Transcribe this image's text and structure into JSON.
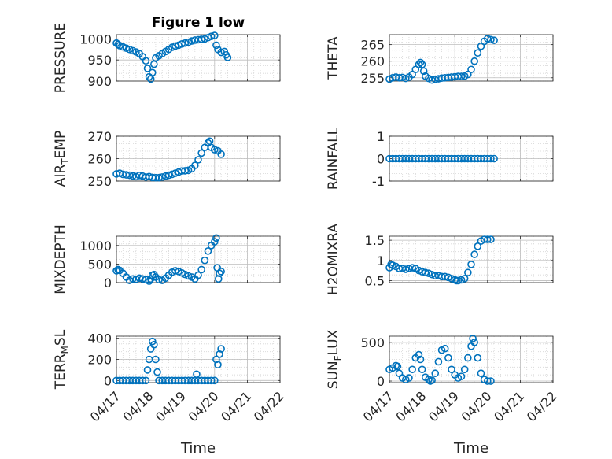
{
  "figure": {
    "title": "Figure 1 low",
    "xlabel": "Time",
    "x_tick_labels": [
      "04/17",
      "04/18",
      "04/19",
      "04/20",
      "04/21",
      "04/22"
    ]
  },
  "chart_data": [
    {
      "type": "scatter",
      "subplot": 1,
      "ylabel": "PRESSURE",
      "title": "Figure 1 low",
      "xlim": [
        0,
        5
      ],
      "ylim": [
        900,
        1010
      ],
      "yticks": [
        900,
        950,
        1000
      ],
      "x_tick_labels": [
        "04/17",
        "04/18",
        "04/19",
        "04/20",
        "04/21",
        "04/22"
      ],
      "grid": true,
      "marker": "open-circle",
      "color": "#0072BD",
      "points": [
        [
          0.0,
          990
        ],
        [
          0.05,
          987
        ],
        [
          0.1,
          984
        ],
        [
          0.2,
          981
        ],
        [
          0.3,
          978
        ],
        [
          0.4,
          975
        ],
        [
          0.5,
          972
        ],
        [
          0.6,
          969
        ],
        [
          0.7,
          965
        ],
        [
          0.8,
          958
        ],
        [
          0.9,
          948
        ],
        [
          0.95,
          930
        ],
        [
          1.0,
          910
        ],
        [
          1.05,
          905
        ],
        [
          1.1,
          920
        ],
        [
          1.15,
          940
        ],
        [
          1.2,
          955
        ],
        [
          1.3,
          960
        ],
        [
          1.4,
          965
        ],
        [
          1.5,
          970
        ],
        [
          1.6,
          975
        ],
        [
          1.7,
          980
        ],
        [
          1.8,
          983
        ],
        [
          1.9,
          985
        ],
        [
          2.0,
          988
        ],
        [
          2.1,
          990
        ],
        [
          2.2,
          992
        ],
        [
          2.3,
          995
        ],
        [
          2.4,
          997
        ],
        [
          2.5,
          998
        ],
        [
          2.6,
          999
        ],
        [
          2.7,
          1000
        ],
        [
          2.8,
          1003
        ],
        [
          2.9,
          1006
        ],
        [
          3.0,
          1008
        ],
        [
          3.05,
          985
        ],
        [
          3.1,
          975
        ],
        [
          3.2,
          968
        ],
        [
          3.3,
          970
        ],
        [
          3.35,
          962
        ],
        [
          3.4,
          956
        ]
      ]
    },
    {
      "type": "scatter",
      "subplot": 2,
      "ylabel": "THETA",
      "xlim": [
        0,
        5
      ],
      "ylim": [
        254,
        268
      ],
      "yticks": [
        255,
        260,
        265
      ],
      "x_tick_labels": [
        "04/17",
        "04/18",
        "04/19",
        "04/20",
        "04/21",
        "04/22"
      ],
      "grid": true,
      "marker": "open-circle",
      "color": "#0072BD",
      "points": [
        [
          0.0,
          254.6
        ],
        [
          0.1,
          255.0
        ],
        [
          0.2,
          255.2
        ],
        [
          0.3,
          255.0
        ],
        [
          0.4,
          255.1
        ],
        [
          0.5,
          254.8
        ],
        [
          0.6,
          255.2
        ],
        [
          0.7,
          256.0
        ],
        [
          0.8,
          257.5
        ],
        [
          0.9,
          259.0
        ],
        [
          0.95,
          259.6
        ],
        [
          1.0,
          259.0
        ],
        [
          1.05,
          257.0
        ],
        [
          1.1,
          255.5
        ],
        [
          1.2,
          254.8
        ],
        [
          1.3,
          254.3
        ],
        [
          1.4,
          254.5
        ],
        [
          1.5,
          254.7
        ],
        [
          1.6,
          254.9
        ],
        [
          1.7,
          255.0
        ],
        [
          1.8,
          255.1
        ],
        [
          1.9,
          255.2
        ],
        [
          2.0,
          255.3
        ],
        [
          2.1,
          255.4
        ],
        [
          2.2,
          255.4
        ],
        [
          2.3,
          255.5
        ],
        [
          2.4,
          256.0
        ],
        [
          2.5,
          257.5
        ],
        [
          2.6,
          260.0
        ],
        [
          2.7,
          262.5
        ],
        [
          2.8,
          264.5
        ],
        [
          2.9,
          266.0
        ],
        [
          3.0,
          266.8
        ],
        [
          3.1,
          266.5
        ],
        [
          3.2,
          266.3
        ]
      ]
    },
    {
      "type": "scatter",
      "subplot": 3,
      "ylabel": "AIR_TEMP",
      "xlim": [
        0,
        5
      ],
      "ylim": [
        250,
        270
      ],
      "yticks": [
        250,
        260,
        270
      ],
      "x_tick_labels": [
        "04/17",
        "04/18",
        "04/19",
        "04/20",
        "04/21",
        "04/22"
      ],
      "grid": true,
      "marker": "open-circle",
      "color": "#0072BD",
      "points": [
        [
          0.0,
          253.2
        ],
        [
          0.1,
          253.5
        ],
        [
          0.2,
          253.0
        ],
        [
          0.3,
          252.8
        ],
        [
          0.4,
          252.6
        ],
        [
          0.5,
          252.3
        ],
        [
          0.6,
          252.0
        ],
        [
          0.7,
          252.5
        ],
        [
          0.8,
          252.2
        ],
        [
          0.9,
          251.8
        ],
        [
          1.0,
          252.0
        ],
        [
          1.1,
          251.6
        ],
        [
          1.2,
          251.5
        ],
        [
          1.3,
          251.5
        ],
        [
          1.4,
          251.8
        ],
        [
          1.5,
          252.2
        ],
        [
          1.6,
          252.6
        ],
        [
          1.7,
          253.0
        ],
        [
          1.8,
          253.5
        ],
        [
          1.9,
          254.0
        ],
        [
          2.0,
          254.5
        ],
        [
          2.1,
          254.6
        ],
        [
          2.2,
          254.8
        ],
        [
          2.3,
          255.5
        ],
        [
          2.4,
          257.0
        ],
        [
          2.5,
          259.5
        ],
        [
          2.6,
          262.5
        ],
        [
          2.7,
          265.0
        ],
        [
          2.8,
          267.0
        ],
        [
          2.85,
          267.8
        ],
        [
          2.9,
          265.0
        ],
        [
          3.0,
          264.0
        ],
        [
          3.1,
          263.5
        ],
        [
          3.2,
          262.0
        ]
      ]
    },
    {
      "type": "scatter",
      "subplot": 4,
      "ylabel": "RAINFALL",
      "xlim": [
        0,
        5
      ],
      "ylim": [
        -1,
        1
      ],
      "yticks": [
        -1,
        0,
        1
      ],
      "x_tick_labels": [
        "04/17",
        "04/18",
        "04/19",
        "04/20",
        "04/21",
        "04/22"
      ],
      "grid": true,
      "marker": "open-circle",
      "color": "#0072BD",
      "points": [
        [
          0.0,
          0
        ],
        [
          0.1,
          0
        ],
        [
          0.2,
          0
        ],
        [
          0.3,
          0
        ],
        [
          0.4,
          0
        ],
        [
          0.5,
          0
        ],
        [
          0.6,
          0
        ],
        [
          0.7,
          0
        ],
        [
          0.8,
          0
        ],
        [
          0.9,
          0
        ],
        [
          1.0,
          0
        ],
        [
          1.1,
          0
        ],
        [
          1.2,
          0
        ],
        [
          1.3,
          0
        ],
        [
          1.4,
          0
        ],
        [
          1.5,
          0
        ],
        [
          1.6,
          0
        ],
        [
          1.7,
          0
        ],
        [
          1.8,
          0
        ],
        [
          1.9,
          0
        ],
        [
          2.0,
          0
        ],
        [
          2.1,
          0
        ],
        [
          2.2,
          0
        ],
        [
          2.3,
          0
        ],
        [
          2.4,
          0
        ],
        [
          2.5,
          0
        ],
        [
          2.6,
          0
        ],
        [
          2.7,
          0
        ],
        [
          2.8,
          0
        ],
        [
          2.9,
          0
        ],
        [
          3.0,
          0
        ],
        [
          3.1,
          0
        ],
        [
          3.2,
          0
        ]
      ]
    },
    {
      "type": "scatter",
      "subplot": 5,
      "ylabel": "MIXDEPTH",
      "xlim": [
        0,
        5
      ],
      "ylim": [
        0,
        1250
      ],
      "yticks": [
        0,
        500,
        1000
      ],
      "x_tick_labels": [
        "04/17",
        "04/18",
        "04/19",
        "04/20",
        "04/21",
        "04/22"
      ],
      "grid": true,
      "marker": "open-circle",
      "color": "#0072BD",
      "points": [
        [
          0.0,
          320
        ],
        [
          0.05,
          350
        ],
        [
          0.1,
          330
        ],
        [
          0.2,
          250
        ],
        [
          0.3,
          150
        ],
        [
          0.4,
          60
        ],
        [
          0.5,
          100
        ],
        [
          0.6,
          90
        ],
        [
          0.7,
          120
        ],
        [
          0.8,
          100
        ],
        [
          0.9,
          80
        ],
        [
          1.0,
          40
        ],
        [
          1.05,
          100
        ],
        [
          1.1,
          200
        ],
        [
          1.15,
          220
        ],
        [
          1.2,
          150
        ],
        [
          1.3,
          80
        ],
        [
          1.4,
          60
        ],
        [
          1.5,
          120
        ],
        [
          1.6,
          200
        ],
        [
          1.7,
          280
        ],
        [
          1.8,
          320
        ],
        [
          1.9,
          300
        ],
        [
          2.0,
          260
        ],
        [
          2.1,
          220
        ],
        [
          2.2,
          180
        ],
        [
          2.3,
          150
        ],
        [
          2.4,
          100
        ],
        [
          2.5,
          200
        ],
        [
          2.6,
          350
        ],
        [
          2.7,
          600
        ],
        [
          2.8,
          850
        ],
        [
          2.9,
          1000
        ],
        [
          3.0,
          1100
        ],
        [
          3.05,
          1200
        ],
        [
          3.08,
          400
        ],
        [
          3.12,
          100
        ],
        [
          3.15,
          250
        ],
        [
          3.2,
          300
        ]
      ]
    },
    {
      "type": "scatter",
      "subplot": 6,
      "ylabel": "H2OMIXRA",
      "xlim": [
        0,
        5
      ],
      "ylim": [
        0.45,
        1.6
      ],
      "yticks": [
        0.5,
        1,
        1.5
      ],
      "x_tick_labels": [
        "04/17",
        "04/18",
        "04/19",
        "04/20",
        "04/21",
        "04/22"
      ],
      "grid": true,
      "marker": "open-circle",
      "color": "#0072BD",
      "points": [
        [
          0.0,
          0.82
        ],
        [
          0.05,
          0.9
        ],
        [
          0.1,
          0.88
        ],
        [
          0.2,
          0.85
        ],
        [
          0.3,
          0.8
        ],
        [
          0.4,
          0.8
        ],
        [
          0.5,
          0.78
        ],
        [
          0.6,
          0.8
        ],
        [
          0.7,
          0.82
        ],
        [
          0.8,
          0.8
        ],
        [
          0.9,
          0.75
        ],
        [
          1.0,
          0.72
        ],
        [
          1.1,
          0.7
        ],
        [
          1.2,
          0.68
        ],
        [
          1.3,
          0.65
        ],
        [
          1.4,
          0.62
        ],
        [
          1.5,
          0.62
        ],
        [
          1.6,
          0.6
        ],
        [
          1.7,
          0.6
        ],
        [
          1.8,
          0.58
        ],
        [
          1.9,
          0.55
        ],
        [
          2.0,
          0.52
        ],
        [
          2.05,
          0.5
        ],
        [
          2.1,
          0.5
        ],
        [
          2.2,
          0.52
        ],
        [
          2.3,
          0.55
        ],
        [
          2.4,
          0.7
        ],
        [
          2.5,
          0.9
        ],
        [
          2.6,
          1.15
        ],
        [
          2.7,
          1.35
        ],
        [
          2.8,
          1.48
        ],
        [
          2.9,
          1.52
        ],
        [
          3.0,
          1.52
        ],
        [
          3.1,
          1.52
        ]
      ]
    },
    {
      "type": "scatter",
      "subplot": 7,
      "ylabel": "TERR_MSL",
      "xlim": [
        0,
        5
      ],
      "ylim": [
        -20,
        420
      ],
      "yticks": [
        0,
        200,
        400
      ],
      "x_tick_labels": [
        "04/17",
        "04/18",
        "04/19",
        "04/20",
        "04/21",
        "04/22"
      ],
      "grid": true,
      "marker": "open-circle",
      "color": "#0072BD",
      "points": [
        [
          0.0,
          0
        ],
        [
          0.1,
          0
        ],
        [
          0.2,
          0
        ],
        [
          0.3,
          0
        ],
        [
          0.4,
          0
        ],
        [
          0.5,
          0
        ],
        [
          0.6,
          0
        ],
        [
          0.7,
          0
        ],
        [
          0.8,
          0
        ],
        [
          0.9,
          0
        ],
        [
          0.95,
          100
        ],
        [
          1.0,
          200
        ],
        [
          1.05,
          300
        ],
        [
          1.1,
          370
        ],
        [
          1.15,
          340
        ],
        [
          1.2,
          200
        ],
        [
          1.25,
          80
        ],
        [
          1.3,
          0
        ],
        [
          1.4,
          0
        ],
        [
          1.5,
          0
        ],
        [
          1.6,
          0
        ],
        [
          1.7,
          0
        ],
        [
          1.8,
          0
        ],
        [
          1.9,
          0
        ],
        [
          2.0,
          0
        ],
        [
          2.1,
          0
        ],
        [
          2.2,
          0
        ],
        [
          2.3,
          0
        ],
        [
          2.4,
          0
        ],
        [
          2.45,
          60
        ],
        [
          2.5,
          0
        ],
        [
          2.6,
          0
        ],
        [
          2.7,
          0
        ],
        [
          2.8,
          0
        ],
        [
          2.9,
          0
        ],
        [
          3.0,
          0
        ],
        [
          3.05,
          200
        ],
        [
          3.1,
          150
        ],
        [
          3.15,
          250
        ],
        [
          3.2,
          300
        ]
      ]
    },
    {
      "type": "scatter",
      "subplot": 8,
      "ylabel": "SUN_FLUX",
      "xlim": [
        0,
        5
      ],
      "ylim": [
        -20,
        580
      ],
      "yticks": [
        0,
        500
      ],
      "x_tick_labels": [
        "04/17",
        "04/18",
        "04/19",
        "04/20",
        "04/21",
        "04/22"
      ],
      "grid": true,
      "marker": "open-circle",
      "color": "#0072BD",
      "points": [
        [
          0.0,
          150
        ],
        [
          0.1,
          170
        ],
        [
          0.2,
          200
        ],
        [
          0.25,
          190
        ],
        [
          0.3,
          100
        ],
        [
          0.4,
          40
        ],
        [
          0.5,
          20
        ],
        [
          0.6,
          40
        ],
        [
          0.7,
          150
        ],
        [
          0.8,
          300
        ],
        [
          0.9,
          340
        ],
        [
          0.95,
          280
        ],
        [
          1.0,
          150
        ],
        [
          1.1,
          50
        ],
        [
          1.2,
          20
        ],
        [
          1.25,
          0
        ],
        [
          1.3,
          10
        ],
        [
          1.4,
          100
        ],
        [
          1.5,
          250
        ],
        [
          1.6,
          400
        ],
        [
          1.7,
          420
        ],
        [
          1.8,
          300
        ],
        [
          1.9,
          150
        ],
        [
          2.0,
          80
        ],
        [
          2.1,
          40
        ],
        [
          2.2,
          60
        ],
        [
          2.3,
          150
        ],
        [
          2.4,
          300
        ],
        [
          2.5,
          450
        ],
        [
          2.55,
          550
        ],
        [
          2.6,
          500
        ],
        [
          2.7,
          300
        ],
        [
          2.8,
          100
        ],
        [
          2.9,
          20
        ],
        [
          3.0,
          0
        ],
        [
          3.1,
          0
        ]
      ]
    }
  ]
}
